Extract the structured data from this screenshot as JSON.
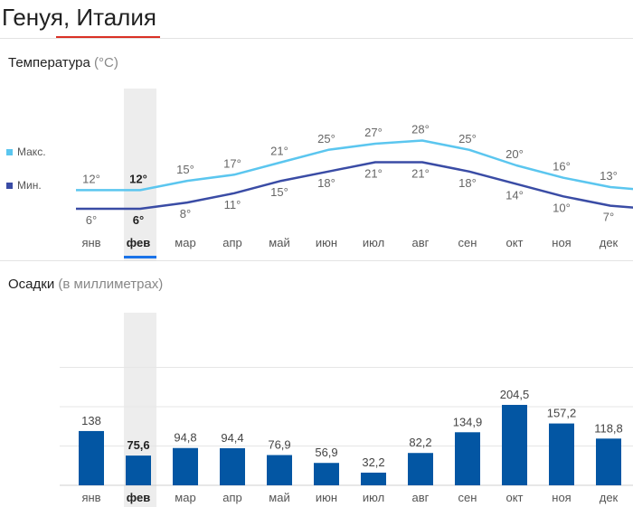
{
  "header": {
    "city_title": "Генуя, Италия"
  },
  "temperature": {
    "section_title": "Температура",
    "section_unit": "(°C)",
    "legend": [
      {
        "label": "Макс.",
        "color": "#5bc6ef"
      },
      {
        "label": "Мин.",
        "color": "#3a4ca5"
      }
    ]
  },
  "precipitation": {
    "section_title": "Осадки",
    "section_unit": "(в миллиметрах)",
    "bar_color": "#0356a3"
  },
  "selected_month_index": 1,
  "chart_data": [
    {
      "type": "line",
      "categories": [
        "янв",
        "фев",
        "мар",
        "апр",
        "май",
        "июн",
        "июл",
        "авг",
        "сен",
        "окт",
        "ноя",
        "дек"
      ],
      "series": [
        {
          "name": "Макс.",
          "values": [
            12,
            12,
            15,
            17,
            21,
            25,
            27,
            28,
            25,
            20,
            16,
            13
          ],
          "labels": [
            "12°",
            "12°",
            "15°",
            "17°",
            "21°",
            "25°",
            "27°",
            "28°",
            "25°",
            "20°",
            "16°",
            "13°"
          ]
        },
        {
          "name": "Мин.",
          "values": [
            6,
            6,
            8,
            11,
            15,
            18,
            21,
            21,
            18,
            14,
            10,
            7
          ],
          "labels": [
            "6°",
            "6°",
            "8°",
            "11°",
            "15°",
            "18°",
            "21°",
            "21°",
            "18°",
            "14°",
            "10°",
            "7°"
          ]
        }
      ],
      "title": "Температура",
      "ylabel": "°C"
    },
    {
      "type": "bar",
      "categories": [
        "янв",
        "фев",
        "мар",
        "апр",
        "май",
        "июн",
        "июл",
        "авг",
        "сен",
        "окт",
        "ноя",
        "дек"
      ],
      "values": [
        138,
        75.6,
        94.8,
        94.4,
        76.9,
        56.9,
        32.2,
        82.2,
        134.9,
        204.5,
        157.2,
        118.8
      ],
      "value_labels": [
        "138",
        "75,6",
        "94,8",
        "94,4",
        "76,9",
        "56,9",
        "32,2",
        "82,2",
        "134,9",
        "204,5",
        "157,2",
        "118,8"
      ],
      "title": "Осадки",
      "ylabel": "мм",
      "ylim": [
        0,
        300
      ],
      "grid": true
    }
  ]
}
